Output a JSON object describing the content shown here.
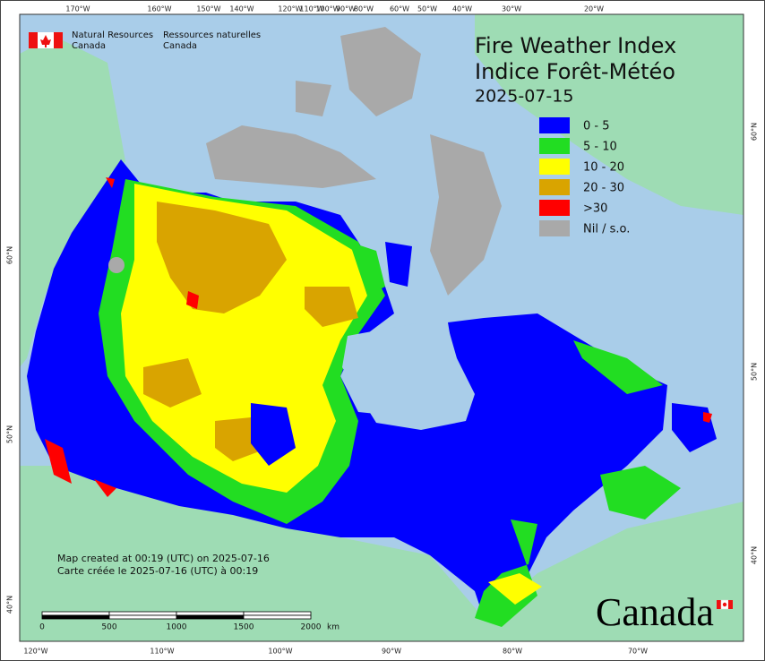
{
  "header": {
    "agency_en": [
      "Natural Resources",
      "Canada"
    ],
    "agency_fr": [
      "Ressources naturelles",
      "Canada"
    ]
  },
  "title": {
    "line1": "Fire Weather Index",
    "line2": "Indice Forêt-Météo",
    "date": "2025-07-15"
  },
  "legend": [
    {
      "label": "0 - 5",
      "color": "#0000ff"
    },
    {
      "label": "5 - 10",
      "color": "#22dd22"
    },
    {
      "label": "10 - 20",
      "color": "#ffff00"
    },
    {
      "label": "20 - 30",
      "color": "#d9a400"
    },
    {
      "label": ">30",
      "color": "#ff0000"
    },
    {
      "label": "Nil / s.o.",
      "color": "#a9a9a9"
    }
  ],
  "graticule": {
    "top": [
      "170°W",
      "160°W",
      "150°W",
      "140°W",
      "120°W",
      "110°W",
      "100°W",
      "90°W",
      "80°W",
      "60°W",
      "50°W",
      "40°W",
      "30°W",
      "20°W"
    ],
    "bottom": [
      "120°W",
      "110°W",
      "100°W",
      "90°W",
      "80°W",
      "70°W"
    ],
    "left": [
      "60°N",
      "50°N",
      "40°N"
    ],
    "right": [
      "60°N",
      "50°N",
      "40°N"
    ]
  },
  "scale_bar": {
    "ticks": [
      0,
      500,
      1000,
      1500,
      2000
    ],
    "unit": "km"
  },
  "notes": [
    "Map created at 00:19 (UTC) on 2025-07-16",
    "Carte créée le 2025-07-16 (UTC) à 00:19"
  ],
  "wordmark": "Canada"
}
